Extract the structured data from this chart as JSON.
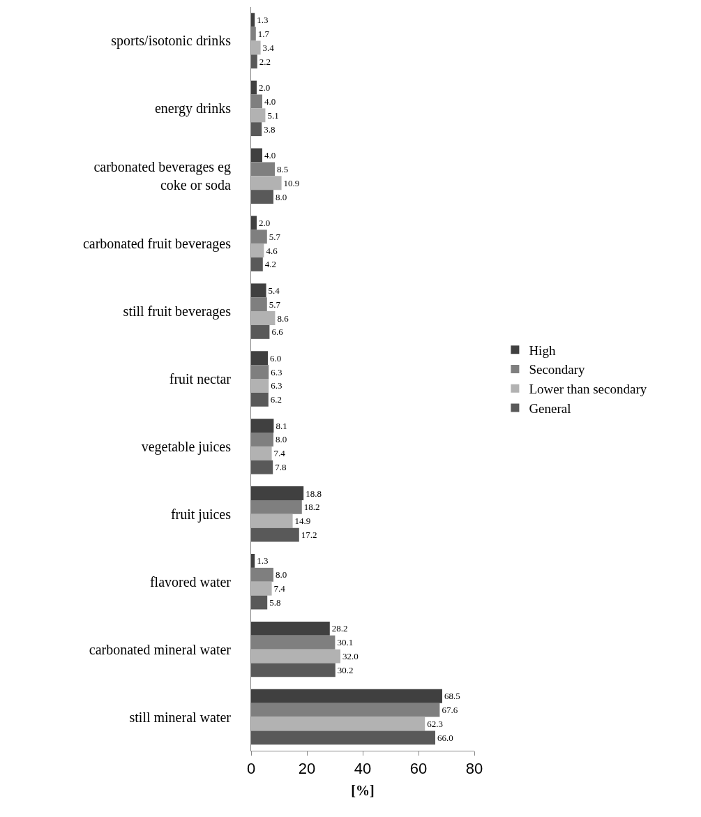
{
  "chart_data": {
    "type": "bar",
    "orientation": "horizontal",
    "xlabel": "[%]",
    "categories": [
      "sports/isotonic drinks",
      "energy drinks",
      "carbonated beverages eg\ncoke or soda",
      "carbonated fruit beverages",
      "still fruit beverages",
      "fruit nectar",
      "vegetable juices",
      "fruit juices",
      "flavored water",
      "carbonated mineral water",
      "still mineral water"
    ],
    "series": [
      {
        "name": "High",
        "color": "#404040",
        "values": [
          1.3,
          2.0,
          4.0,
          2.0,
          5.4,
          6.0,
          8.1,
          18.8,
          1.3,
          28.2,
          68.5
        ],
        "value_labels": [
          "1.3",
          "2.0",
          "4.0",
          "2.0",
          "5.4",
          "6.0",
          "8.1",
          "18.8",
          "1.3",
          "28.2",
          "68.5"
        ]
      },
      {
        "name": "Secondary",
        "color": "#7f7f7f",
        "values": [
          1.7,
          4.0,
          8.5,
          5.7,
          5.7,
          6.3,
          8.0,
          18.2,
          8.0,
          30.1,
          67.6
        ],
        "value_labels": [
          "1.7",
          "4.0",
          "8.5",
          "5.7",
          "5.7",
          "6.3",
          "8.0",
          "18.2",
          "8.0",
          "30.1",
          "67.6"
        ]
      },
      {
        "name": "Lower than secondary",
        "color": "#b2b2b2",
        "values": [
          3.4,
          5.1,
          10.9,
          4.6,
          8.6,
          6.3,
          7.4,
          14.9,
          7.4,
          32.0,
          62.3
        ],
        "value_labels": [
          "3.4",
          "5.1",
          "10.9",
          "4.6",
          "8.6",
          "6.3",
          "7.4",
          "14.9",
          "7.4",
          "32.0",
          "62.3"
        ]
      },
      {
        "name": "General",
        "color": "#595959",
        "values": [
          2.2,
          3.8,
          8.0,
          4.2,
          6.6,
          6.2,
          7.8,
          17.2,
          5.8,
          30.2,
          66.0
        ],
        "value_labels": [
          "2.2",
          "3.8",
          "8.0",
          "4.2",
          "6.6",
          "6.2",
          "7.8",
          "17.2",
          "5.8",
          "30.2",
          "66.0"
        ]
      }
    ],
    "xlim": [
      0,
      80
    ],
    "xticks": [
      0,
      20,
      40,
      60,
      80
    ],
    "grid": false,
    "legend": "right"
  }
}
